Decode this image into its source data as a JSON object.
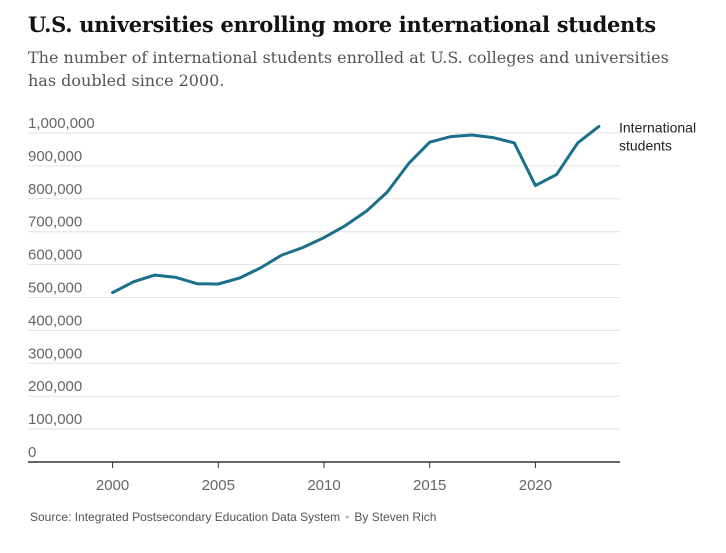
{
  "chart_data": {
    "type": "line",
    "title": "U.S. universities enrolling more international students",
    "subtitle": "The number of international students enrolled at U.S. colleges and universities has doubled since 2000.",
    "xlabel": "",
    "ylabel": "",
    "xlim": [
      1996,
      2024
    ],
    "ylim": [
      0,
      1000000
    ],
    "y_ticks": [
      0,
      100000,
      200000,
      300000,
      400000,
      500000,
      600000,
      700000,
      800000,
      900000,
      1000000
    ],
    "y_tick_labels": [
      "0",
      "100,000",
      "200,000",
      "300,000",
      "400,000",
      "500,000",
      "600,000",
      "700,000",
      "800,000",
      "900,000",
      "1,000,000"
    ],
    "x_ticks": [
      2000,
      2005,
      2010,
      2015,
      2020
    ],
    "x_tick_labels": [
      "2000",
      "2005",
      "2010",
      "2015",
      "2020"
    ],
    "grid": "horizontal",
    "series": [
      {
        "name": "International students",
        "label_lines": [
          "International",
          "students"
        ],
        "color": "#1a6f8a",
        "x": [
          2000,
          2001,
          2002,
          2003,
          2004,
          2005,
          2006,
          2007,
          2008,
          2009,
          2010,
          2011,
          2012,
          2013,
          2014,
          2015,
          2016,
          2017,
          2018,
          2019,
          2020,
          2021,
          2022,
          2023
        ],
        "values": [
          515000,
          548000,
          568000,
          561000,
          542000,
          541000,
          559000,
          590000,
          629000,
          652000,
          682000,
          718000,
          762000,
          821000,
          907000,
          972000,
          989000,
          994000,
          986000,
          970000,
          840000,
          874000,
          970000,
          1020000
        ]
      }
    ]
  },
  "footer": {
    "source": "Source: Integrated Postsecondary Education Data System",
    "separator": "•",
    "byline": "By Steven Rich"
  }
}
